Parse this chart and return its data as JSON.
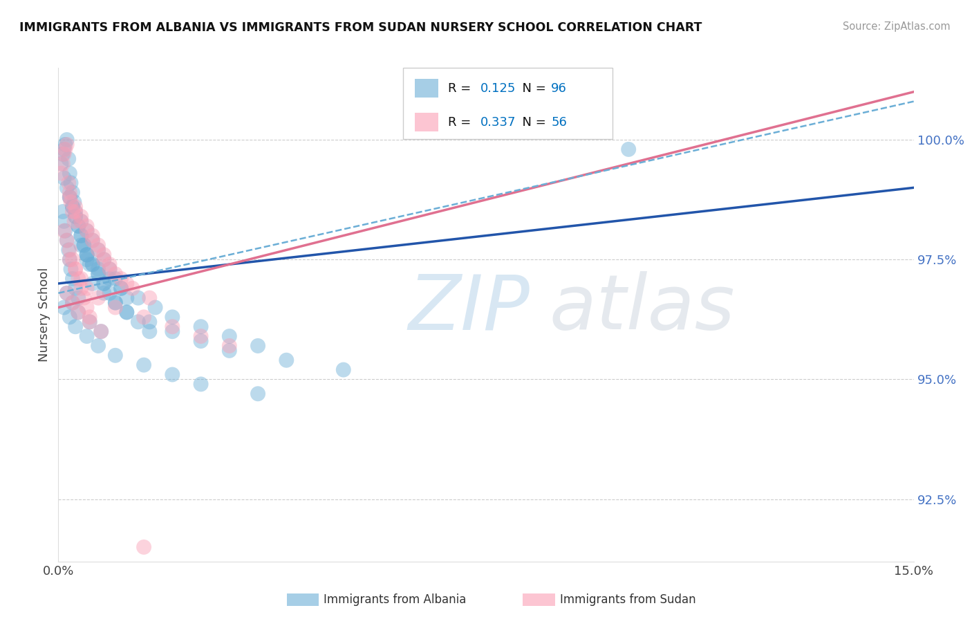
{
  "title": "IMMIGRANTS FROM ALBANIA VS IMMIGRANTS FROM SUDAN NURSERY SCHOOL CORRELATION CHART",
  "source": "Source: ZipAtlas.com",
  "ylabel": "Nursery School",
  "yticks": [
    92.5,
    95.0,
    97.5,
    100.0
  ],
  "ytick_labels": [
    "92.5%",
    "95.0%",
    "97.5%",
    "100.0%"
  ],
  "xmin": 0.0,
  "xmax": 15.0,
  "ymin": 91.2,
  "ymax": 101.5,
  "albania_color": "#6baed6",
  "sudan_color": "#fa9fb5",
  "albania_R": "0.125",
  "albania_N": "96",
  "sudan_R": "0.337",
  "sudan_N": "56",
  "legend_val_color": "#0070c0",
  "watermark": "ZIPatlas",
  "bottom_label_albania": "Immigrants from Albania",
  "bottom_label_sudan": "Immigrants from Sudan",
  "albania_x": [
    0.05,
    0.08,
    0.1,
    0.12,
    0.15,
    0.18,
    0.2,
    0.22,
    0.25,
    0.28,
    0.08,
    0.1,
    0.12,
    0.15,
    0.18,
    0.2,
    0.22,
    0.25,
    0.3,
    0.35,
    0.1,
    0.15,
    0.2,
    0.25,
    0.3,
    0.35,
    0.4,
    0.45,
    0.5,
    0.55,
    0.2,
    0.25,
    0.3,
    0.35,
    0.4,
    0.45,
    0.5,
    0.6,
    0.7,
    0.8,
    0.3,
    0.4,
    0.5,
    0.6,
    0.7,
    0.8,
    0.9,
    1.0,
    1.1,
    1.2,
    0.4,
    0.5,
    0.6,
    0.7,
    0.8,
    0.9,
    1.0,
    1.2,
    1.4,
    1.6,
    0.5,
    0.7,
    0.9,
    1.1,
    1.4,
    1.7,
    2.0,
    2.5,
    3.0,
    3.5,
    0.6,
    0.8,
    1.0,
    1.2,
    1.6,
    2.0,
    2.5,
    3.0,
    4.0,
    5.0,
    0.1,
    0.2,
    0.3,
    0.5,
    0.7,
    1.0,
    1.5,
    2.0,
    2.5,
    3.5,
    0.15,
    0.25,
    0.35,
    0.55,
    0.75,
    10.0
  ],
  "albania_y": [
    99.5,
    99.7,
    99.8,
    99.9,
    100.0,
    99.6,
    99.3,
    99.1,
    98.9,
    98.7,
    98.5,
    98.3,
    98.1,
    97.9,
    97.7,
    97.5,
    97.3,
    97.1,
    96.9,
    96.7,
    99.2,
    99.0,
    98.8,
    98.6,
    98.4,
    98.2,
    98.0,
    97.8,
    97.6,
    97.4,
    98.8,
    98.6,
    98.4,
    98.2,
    98.0,
    97.8,
    97.6,
    97.4,
    97.2,
    97.0,
    98.5,
    98.3,
    98.1,
    97.9,
    97.7,
    97.5,
    97.3,
    97.1,
    96.9,
    96.7,
    97.8,
    97.6,
    97.4,
    97.2,
    97.0,
    96.8,
    96.6,
    96.4,
    96.2,
    96.0,
    97.5,
    97.3,
    97.1,
    96.9,
    96.7,
    96.5,
    96.3,
    96.1,
    95.9,
    95.7,
    97.0,
    96.8,
    96.6,
    96.4,
    96.2,
    96.0,
    95.8,
    95.6,
    95.4,
    95.2,
    96.5,
    96.3,
    96.1,
    95.9,
    95.7,
    95.5,
    95.3,
    95.1,
    94.9,
    94.7,
    96.8,
    96.6,
    96.4,
    96.2,
    96.0,
    99.8
  ],
  "sudan_x": [
    0.05,
    0.08,
    0.1,
    0.12,
    0.15,
    0.18,
    0.2,
    0.22,
    0.25,
    0.28,
    0.1,
    0.15,
    0.2,
    0.25,
    0.3,
    0.35,
    0.4,
    0.45,
    0.5,
    0.55,
    0.2,
    0.3,
    0.4,
    0.5,
    0.6,
    0.7,
    0.8,
    0.9,
    1.0,
    1.2,
    0.3,
    0.4,
    0.5,
    0.6,
    0.7,
    0.8,
    0.9,
    1.1,
    1.3,
    1.6,
    0.2,
    0.3,
    0.4,
    0.5,
    0.7,
    1.0,
    1.5,
    2.0,
    2.5,
    3.0,
    0.15,
    0.25,
    0.35,
    0.55,
    0.75,
    1.5
  ],
  "sudan_y": [
    99.3,
    99.5,
    99.7,
    99.8,
    99.9,
    99.1,
    98.9,
    98.7,
    98.5,
    98.3,
    98.1,
    97.9,
    97.7,
    97.5,
    97.3,
    97.1,
    96.9,
    96.7,
    96.5,
    96.3,
    98.8,
    98.6,
    98.4,
    98.2,
    98.0,
    97.8,
    97.6,
    97.4,
    97.2,
    97.0,
    98.5,
    98.3,
    98.1,
    97.9,
    97.7,
    97.5,
    97.3,
    97.1,
    96.9,
    96.7,
    97.5,
    97.3,
    97.1,
    96.9,
    96.7,
    96.5,
    96.3,
    96.1,
    95.9,
    95.7,
    96.8,
    96.6,
    96.4,
    96.2,
    96.0,
    91.5
  ],
  "albania_line_x0": 0.0,
  "albania_line_y0": 97.0,
  "albania_line_x1": 15.0,
  "albania_line_y1": 99.0,
  "sudan_line_x0": 0.0,
  "sudan_line_y0": 96.5,
  "sudan_line_x1": 15.0,
  "sudan_line_y1": 101.0,
  "dash_line_x0": 0.0,
  "dash_line_y0": 96.8,
  "dash_line_x1": 15.0,
  "dash_line_y1": 100.8
}
